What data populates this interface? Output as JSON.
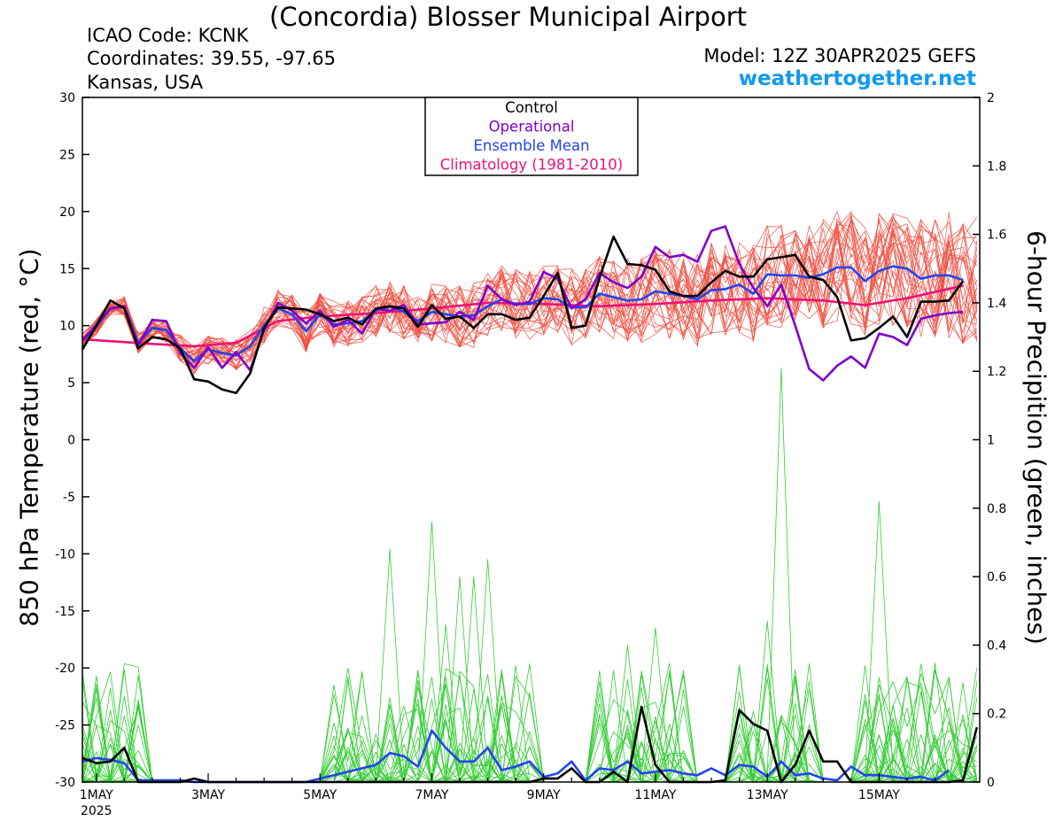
{
  "header": {
    "title": "(Concordia) Blosser Municipal Airport",
    "icao": "ICAO Code: KCNK",
    "coordinates": "Coordinates: 39.55, -97.65",
    "location": "Kansas, USA",
    "model": "Model: 12Z 30APR2025 GEFS",
    "brand": "weathertogether.net"
  },
  "colors": {
    "temp_members": "#f04c40",
    "precip_members": "#33cc33",
    "control": "#000000",
    "operational": "#7f00cc",
    "ensemble_mean": "#2244ee",
    "climatology": "#ee1177",
    "brand": "#1199ee"
  },
  "chart_data": {
    "type": "line",
    "ylabel_left": "850 hPa Temperature (red, °C)",
    "ylabel_right": "6-hour Precipition (green, inches)",
    "ylim_left": [
      -30,
      30
    ],
    "ylim_right": [
      0,
      2
    ],
    "yticks_left": [
      "30",
      "25",
      "20",
      "15",
      "10",
      "5",
      "0",
      "-5",
      "-10",
      "-15",
      "-20",
      "-25",
      "-30"
    ],
    "yticks_right": [
      "2",
      "1.8",
      "1.6",
      "1.4",
      "1.2",
      "1",
      "0.8",
      "0.6",
      "0.4",
      "0.2",
      "0"
    ],
    "xlim_days": [
      0.75,
      16.8
    ],
    "xticks": [
      {
        "day": 1,
        "label": "1MAY",
        "sub": "2025"
      },
      {
        "day": 3,
        "label": "3MAY",
        "sub": ""
      },
      {
        "day": 5,
        "label": "5MAY",
        "sub": ""
      },
      {
        "day": 7,
        "label": "7MAY",
        "sub": ""
      },
      {
        "day": 9,
        "label": "9MAY",
        "sub": ""
      },
      {
        "day": 11,
        "label": "11MAY",
        "sub": ""
      },
      {
        "day": 13,
        "label": "13MAY",
        "sub": ""
      },
      {
        "day": 15,
        "label": "15MAY",
        "sub": ""
      }
    ],
    "legend": {
      "placement": "top-center",
      "entries": [
        {
          "name": "Control",
          "color": "#000000"
        },
        {
          "name": "Operational",
          "color": "#7f00cc"
        },
        {
          "name": "Ensemble Mean",
          "color": "#2244ee"
        },
        {
          "name": "Climatology (1981-2010)",
          "color": "#ee1177"
        }
      ]
    },
    "temperature_series": {
      "control": [
        [
          0.75,
          7.9
        ],
        [
          1,
          10
        ],
        [
          1.25,
          12.2
        ],
        [
          1.5,
          11.5
        ],
        [
          1.75,
          8
        ],
        [
          2,
          9
        ],
        [
          2.25,
          8.8
        ],
        [
          2.5,
          8
        ],
        [
          2.75,
          5.3
        ],
        [
          3,
          5.1
        ],
        [
          3.25,
          4.4
        ],
        [
          3.5,
          4.1
        ],
        [
          3.75,
          5.8
        ],
        [
          4,
          9.8
        ],
        [
          4.25,
          11.6
        ],
        [
          4.5,
          11.5
        ],
        [
          4.75,
          11.4
        ],
        [
          5,
          11
        ],
        [
          5.25,
          10.4
        ],
        [
          5.5,
          10.7
        ],
        [
          5.75,
          10.1
        ],
        [
          6,
          11.5
        ],
        [
          6.25,
          11.7
        ],
        [
          6.5,
          11.5
        ],
        [
          6.75,
          9.9
        ],
        [
          7,
          11.8
        ],
        [
          7.25,
          10.6
        ],
        [
          7.5,
          10.8
        ],
        [
          7.75,
          9.8
        ],
        [
          8,
          11
        ],
        [
          8.25,
          11
        ],
        [
          8.5,
          10.5
        ],
        [
          8.75,
          10.7
        ],
        [
          9,
          12.6
        ],
        [
          9.25,
          14.6
        ],
        [
          9.5,
          9.8
        ],
        [
          9.75,
          10
        ],
        [
          10,
          14.2
        ],
        [
          10.25,
          17.8
        ],
        [
          10.5,
          15.4
        ],
        [
          10.75,
          15.3
        ],
        [
          11,
          14.9
        ],
        [
          11.25,
          13
        ],
        [
          11.5,
          12.6
        ],
        [
          11.75,
          12.6
        ],
        [
          12,
          13.8
        ],
        [
          12.25,
          14.8
        ],
        [
          12.5,
          14.3
        ],
        [
          12.75,
          14.3
        ],
        [
          13,
          15.8
        ],
        [
          13.25,
          16
        ],
        [
          13.5,
          16.2
        ],
        [
          13.75,
          14.3
        ],
        [
          14,
          14
        ],
        [
          14.25,
          12.5
        ],
        [
          14.5,
          8.7
        ],
        [
          14.75,
          8.9
        ],
        [
          15,
          9.8
        ],
        [
          15.25,
          10.8
        ],
        [
          15.5,
          9
        ],
        [
          15.75,
          12.1
        ],
        [
          16,
          12.1
        ],
        [
          16.25,
          12.2
        ],
        [
          16.5,
          13.9
        ]
      ],
      "operational": [
        [
          0.75,
          8.7
        ],
        [
          1,
          10.1
        ],
        [
          1.25,
          11.5
        ],
        [
          1.5,
          11.7
        ],
        [
          1.75,
          8.3
        ],
        [
          2,
          10.5
        ],
        [
          2.25,
          10.4
        ],
        [
          2.5,
          7.6
        ],
        [
          2.75,
          6.3
        ],
        [
          3,
          8.1
        ],
        [
          3.25,
          6.3
        ],
        [
          3.5,
          7.7
        ],
        [
          3.75,
          6.1
        ],
        [
          4,
          9.6
        ],
        [
          4.25,
          12
        ],
        [
          4.5,
          11.3
        ],
        [
          4.75,
          10.2
        ],
        [
          5,
          11.3
        ],
        [
          5.25,
          9.9
        ],
        [
          5.5,
          10.5
        ],
        [
          5.75,
          9.3
        ],
        [
          6,
          11.5
        ],
        [
          6.25,
          11.3
        ],
        [
          6.5,
          11.8
        ],
        [
          6.75,
          10.1
        ],
        [
          7,
          10.2
        ],
        [
          7.25,
          10.3
        ],
        [
          7.5,
          11.2
        ],
        [
          7.75,
          10.5
        ],
        [
          8,
          13.5
        ],
        [
          8.25,
          12.3
        ],
        [
          8.5,
          11.8
        ],
        [
          8.75,
          12.1
        ],
        [
          9,
          14.7
        ],
        [
          9.25,
          14.1
        ],
        [
          9.5,
          11.5
        ],
        [
          9.75,
          12.3
        ],
        [
          10,
          14.6
        ],
        [
          10.25,
          13.8
        ],
        [
          10.5,
          13.3
        ],
        [
          10.75,
          14.3
        ],
        [
          11,
          16.9
        ],
        [
          11.25,
          16
        ],
        [
          11.5,
          16.2
        ],
        [
          11.75,
          15.6
        ],
        [
          12,
          18.3
        ],
        [
          12.25,
          18.7
        ],
        [
          12.5,
          15.4
        ],
        [
          12.75,
          13.3
        ],
        [
          13,
          11.7
        ],
        [
          13.25,
          13.6
        ],
        [
          13.5,
          10
        ],
        [
          13.75,
          6.2
        ],
        [
          14,
          5.2
        ],
        [
          14.25,
          6.5
        ],
        [
          14.5,
          7.3
        ],
        [
          14.75,
          6.3
        ],
        [
          15,
          9.3
        ],
        [
          15.25,
          9
        ],
        [
          15.5,
          8.3
        ],
        [
          15.75,
          10.6
        ],
        [
          16,
          10.9
        ],
        [
          16.25,
          11.1
        ],
        [
          16.5,
          11.2
        ]
      ],
      "ensemble_mean": [
        [
          0.75,
          8.7
        ],
        [
          1,
          9.9
        ],
        [
          1.25,
          11.5
        ],
        [
          1.5,
          11.7
        ],
        [
          1.75,
          8.5
        ],
        [
          2,
          9.8
        ],
        [
          2.25,
          9.6
        ],
        [
          2.5,
          8
        ],
        [
          2.75,
          6.9
        ],
        [
          3,
          7.9
        ],
        [
          3.25,
          7.6
        ],
        [
          3.5,
          7.4
        ],
        [
          3.75,
          8.2
        ],
        [
          4,
          10
        ],
        [
          4.25,
          11.5
        ],
        [
          4.5,
          11
        ],
        [
          4.75,
          9.5
        ],
        [
          5,
          11
        ],
        [
          5.25,
          10.1
        ],
        [
          5.5,
          10.2
        ],
        [
          5.75,
          10.4
        ],
        [
          6,
          11.3
        ],
        [
          6.25,
          11.7
        ],
        [
          6.5,
          11.2
        ],
        [
          6.75,
          10.4
        ],
        [
          7,
          11.2
        ],
        [
          7.25,
          11
        ],
        [
          7.5,
          10.8
        ],
        [
          7.75,
          10.9
        ],
        [
          8,
          11.7
        ],
        [
          8.25,
          12.3
        ],
        [
          8.5,
          11.9
        ],
        [
          8.75,
          11.9
        ],
        [
          9,
          12.4
        ],
        [
          9.25,
          12.3
        ],
        [
          9.5,
          11.6
        ],
        [
          9.75,
          11.6
        ],
        [
          10,
          12.8
        ],
        [
          10.25,
          12.5
        ],
        [
          10.5,
          12.2
        ],
        [
          10.75,
          12.3
        ],
        [
          11,
          13
        ],
        [
          11.25,
          12.8
        ],
        [
          11.5,
          12.6
        ],
        [
          11.75,
          12.3
        ],
        [
          12,
          13.1
        ],
        [
          12.25,
          13.2
        ],
        [
          12.5,
          13.6
        ],
        [
          12.75,
          12.8
        ],
        [
          13,
          14.5
        ],
        [
          13.25,
          14.4
        ],
        [
          13.5,
          14.4
        ],
        [
          13.75,
          14.2
        ],
        [
          14,
          14.5
        ],
        [
          14.25,
          15.1
        ],
        [
          14.5,
          15.1
        ],
        [
          14.75,
          13.9
        ],
        [
          15,
          14.8
        ],
        [
          15.25,
          15.2
        ],
        [
          15.5,
          15
        ],
        [
          15.75,
          14.1
        ],
        [
          16,
          14.4
        ],
        [
          16.25,
          14.4
        ],
        [
          16.5,
          14
        ]
      ],
      "climatology": [
        [
          0.75,
          8.8
        ],
        [
          2,
          8.4
        ],
        [
          2.75,
          8.2
        ],
        [
          3.5,
          8.5
        ],
        [
          4.25,
          10.4
        ],
        [
          5,
          10.8
        ],
        [
          6,
          11.1
        ],
        [
          7,
          11.5
        ],
        [
          8,
          12
        ],
        [
          9,
          11.9
        ],
        [
          10,
          11.7
        ],
        [
          11,
          11.9
        ],
        [
          12,
          12.2
        ],
        [
          13,
          12.4
        ],
        [
          14,
          12.2
        ],
        [
          14.75,
          11.8
        ],
        [
          15.5,
          12.4
        ],
        [
          16.5,
          13.5
        ]
      ]
    },
    "precipitation_series": {
      "control": [
        [
          0.75,
          0.07
        ],
        [
          1,
          0.055
        ],
        [
          1.25,
          0.06
        ],
        [
          1.5,
          0.1
        ],
        [
          1.75,
          0
        ],
        [
          2.5,
          0
        ],
        [
          2.75,
          0.01
        ],
        [
          3,
          0
        ],
        [
          8.75,
          0
        ],
        [
          9,
          0.01
        ],
        [
          9.25,
          0.01
        ],
        [
          9.5,
          0.04
        ],
        [
          9.75,
          0
        ],
        [
          10,
          0
        ],
        [
          10.25,
          0.03
        ],
        [
          10.5,
          0
        ],
        [
          10.75,
          0.22
        ],
        [
          11,
          0.05
        ],
        [
          11.25,
          0
        ],
        [
          12,
          0
        ],
        [
          12.25,
          0.005
        ],
        [
          12.5,
          0.21
        ],
        [
          12.75,
          0.17
        ],
        [
          13,
          0.15
        ],
        [
          13.25,
          0
        ],
        [
          13.5,
          0.05
        ],
        [
          13.75,
          0.15
        ],
        [
          14,
          0.06
        ],
        [
          14.25,
          0.06
        ],
        [
          14.5,
          0
        ],
        [
          16,
          0
        ],
        [
          16.25,
          0
        ],
        [
          16.5,
          0.005
        ],
        [
          16.75,
          0.16
        ]
      ],
      "ensemble_mean": [
        [
          0.75,
          0.06
        ],
        [
          1,
          0.07
        ],
        [
          1.25,
          0.065
        ],
        [
          1.5,
          0.055
        ],
        [
          1.75,
          0.005
        ],
        [
          2.5,
          0.005
        ],
        [
          2.75,
          0
        ],
        [
          4.75,
          0
        ],
        [
          5,
          0.01
        ],
        [
          5.25,
          0.02
        ],
        [
          5.5,
          0.03
        ],
        [
          5.75,
          0.04
        ],
        [
          6,
          0.05
        ],
        [
          6.25,
          0.085
        ],
        [
          6.5,
          0.075
        ],
        [
          6.75,
          0.045
        ],
        [
          7,
          0.15
        ],
        [
          7.25,
          0.1
        ],
        [
          7.5,
          0.06
        ],
        [
          7.75,
          0.06
        ],
        [
          8,
          0.1
        ],
        [
          8.25,
          0.035
        ],
        [
          8.5,
          0.045
        ],
        [
          8.75,
          0.06
        ],
        [
          9,
          0.015
        ],
        [
          9.25,
          0.025
        ],
        [
          9.5,
          0.06
        ],
        [
          9.75,
          0.005
        ],
        [
          10,
          0.04
        ],
        [
          10.25,
          0.035
        ],
        [
          10.5,
          0.06
        ],
        [
          10.75,
          0.025
        ],
        [
          11,
          0.03
        ],
        [
          11.25,
          0.035
        ],
        [
          11.5,
          0.025
        ],
        [
          11.75,
          0.02
        ],
        [
          12,
          0.04
        ],
        [
          12.25,
          0.02
        ],
        [
          12.5,
          0.05
        ],
        [
          12.75,
          0.045
        ],
        [
          13,
          0.015
        ],
        [
          13.25,
          0.06
        ],
        [
          13.5,
          0.02
        ],
        [
          13.75,
          0.025
        ],
        [
          14,
          0.01
        ],
        [
          14.25,
          0.005
        ],
        [
          14.5,
          0.045
        ],
        [
          14.75,
          0.02
        ],
        [
          15,
          0.02
        ],
        [
          15.25,
          0.015
        ],
        [
          15.5,
          0.01
        ],
        [
          15.75,
          0.015
        ],
        [
          16,
          0.005
        ],
        [
          16.25,
          0.035
        ]
      ]
    },
    "ensemble_members": {
      "note": "Thin red (temperature) and green (precipitation) lines are individual GEFS members; shapes approximated."
    }
  }
}
